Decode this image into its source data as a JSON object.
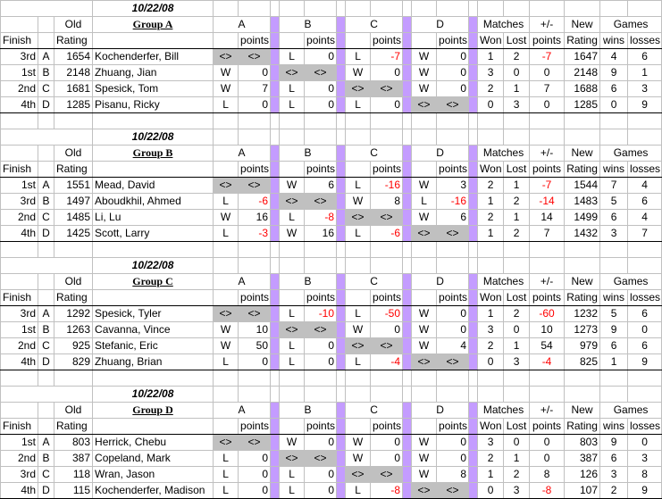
{
  "header": {
    "finish": "Finish",
    "old": "Old",
    "rating": "Rating",
    "a": "A",
    "b": "B",
    "c": "C",
    "d": "D",
    "points": "points",
    "matches": "Matches",
    "won": "Won",
    "lost": "Lost",
    "plusminus": "+/-",
    "new": "New",
    "games": "Games",
    "wins": "wins",
    "losses": "losses"
  },
  "groups": [
    {
      "date": "10/22/08",
      "name": "Group A",
      "rows": [
        {
          "finish": "3rd",
          "seed": "A",
          "old": "1654",
          "name": "Kochenderfer, Bill",
          "ar": "<>",
          "ap": "<>",
          "br": "L",
          "bp": "0",
          "cr": "L",
          "cp": "-7",
          "dr": "W",
          "dp": "0",
          "won": "1",
          "lost": "2",
          "pts": "-7",
          "new": "1647",
          "wins": "4",
          "losses": "6"
        },
        {
          "finish": "1st",
          "seed": "B",
          "old": "2148",
          "name": "Zhuang, Jian",
          "ar": "W",
          "ap": "0",
          "br": "<>",
          "bp": "<>",
          "cr": "W",
          "cp": "0",
          "dr": "W",
          "dp": "0",
          "won": "3",
          "lost": "0",
          "pts": "0",
          "new": "2148",
          "wins": "9",
          "losses": "1"
        },
        {
          "finish": "2nd",
          "seed": "C",
          "old": "1681",
          "name": "Spesick, Tom",
          "ar": "W",
          "ap": "7",
          "br": "L",
          "bp": "0",
          "cr": "<>",
          "cp": "<>",
          "dr": "W",
          "dp": "0",
          "won": "2",
          "lost": "1",
          "pts": "7",
          "new": "1688",
          "wins": "6",
          "losses": "3"
        },
        {
          "finish": "4th",
          "seed": "D",
          "old": "1285",
          "name": "Pisanu, Ricky",
          "ar": "L",
          "ap": "0",
          "br": "L",
          "bp": "0",
          "cr": "L",
          "cp": "0",
          "dr": "<>",
          "dp": "<>",
          "won": "0",
          "lost": "3",
          "pts": "0",
          "new": "1285",
          "wins": "0",
          "losses": "9"
        }
      ]
    },
    {
      "date": "10/22/08",
      "name": "Group B",
      "rows": [
        {
          "finish": "1st",
          "seed": "A",
          "old": "1551",
          "name": "Mead, David",
          "ar": "<>",
          "ap": "<>",
          "br": "W",
          "bp": "6",
          "cr": "L",
          "cp": "-16",
          "dr": "W",
          "dp": "3",
          "won": "2",
          "lost": "1",
          "pts": "-7",
          "new": "1544",
          "wins": "7",
          "losses": "4"
        },
        {
          "finish": "3rd",
          "seed": "B",
          "old": "1497",
          "name": "Aboudkhil, Ahmed",
          "ar": "L",
          "ap": "-6",
          "br": "<>",
          "bp": "<>",
          "cr": "W",
          "cp": "8",
          "dr": "L",
          "dp": "-16",
          "won": "1",
          "lost": "2",
          "pts": "-14",
          "new": "1483",
          "wins": "5",
          "losses": "6"
        },
        {
          "finish": "2nd",
          "seed": "C",
          "old": "1485",
          "name": "Li, Lu",
          "ar": "W",
          "ap": "16",
          "br": "L",
          "bp": "-8",
          "cr": "<>",
          "cp": "<>",
          "dr": "W",
          "dp": "6",
          "won": "2",
          "lost": "1",
          "pts": "14",
          "new": "1499",
          "wins": "6",
          "losses": "4"
        },
        {
          "finish": "4th",
          "seed": "D",
          "old": "1425",
          "name": "Scott, Larry",
          "ar": "L",
          "ap": "-3",
          "br": "W",
          "bp": "16",
          "cr": "L",
          "cp": "-6",
          "dr": "<>",
          "dp": "<>",
          "won": "1",
          "lost": "2",
          "pts": "7",
          "new": "1432",
          "wins": "3",
          "losses": "7"
        }
      ]
    },
    {
      "date": "10/22/08",
      "name": "Group C",
      "rows": [
        {
          "finish": "3rd",
          "seed": "A",
          "old": "1292",
          "name": "Spesick, Tyler",
          "ar": "<>",
          "ap": "<>",
          "br": "L",
          "bp": "-10",
          "cr": "L",
          "cp": "-50",
          "dr": "W",
          "dp": "0",
          "won": "1",
          "lost": "2",
          "pts": "-60",
          "new": "1232",
          "wins": "5",
          "losses": "6"
        },
        {
          "finish": "1st",
          "seed": "B",
          "old": "1263",
          "name": "Cavanna, Vince",
          "ar": "W",
          "ap": "10",
          "br": "<>",
          "bp": "<>",
          "cr": "W",
          "cp": "0",
          "dr": "W",
          "dp": "0",
          "won": "3",
          "lost": "0",
          "pts": "10",
          "new": "1273",
          "wins": "9",
          "losses": "0"
        },
        {
          "finish": "2nd",
          "seed": "C",
          "old": "925",
          "name": "Stefanic, Eric",
          "ar": "W",
          "ap": "50",
          "br": "L",
          "bp": "0",
          "cr": "<>",
          "cp": "<>",
          "dr": "W",
          "dp": "4",
          "won": "2",
          "lost": "1",
          "pts": "54",
          "new": "979",
          "wins": "6",
          "losses": "6"
        },
        {
          "finish": "4th",
          "seed": "D",
          "old": "829",
          "name": "Zhuang, Brian",
          "ar": "L",
          "ap": "0",
          "br": "L",
          "bp": "0",
          "cr": "L",
          "cp": "-4",
          "dr": "<>",
          "dp": "<>",
          "won": "0",
          "lost": "3",
          "pts": "-4",
          "new": "825",
          "wins": "1",
          "losses": "9"
        }
      ]
    },
    {
      "date": "10/22/08",
      "name": "Group D",
      "rows": [
        {
          "finish": "1st",
          "seed": "A",
          "old": "803",
          "name": "Herrick, Chebu",
          "ar": "<>",
          "ap": "<>",
          "br": "W",
          "bp": "0",
          "cr": "W",
          "cp": "0",
          "dr": "W",
          "dp": "0",
          "won": "3",
          "lost": "0",
          "pts": "0",
          "new": "803",
          "wins": "9",
          "losses": "0"
        },
        {
          "finish": "2nd",
          "seed": "B",
          "old": "387",
          "name": "Copeland, Mark",
          "ar": "L",
          "ap": "0",
          "br": "<>",
          "bp": "<>",
          "cr": "W",
          "cp": "0",
          "dr": "W",
          "dp": "0",
          "won": "2",
          "lost": "1",
          "pts": "0",
          "new": "387",
          "wins": "6",
          "losses": "3"
        },
        {
          "finish": "3rd",
          "seed": "C",
          "old": "118",
          "name": "Wran, Jason",
          "ar": "L",
          "ap": "0",
          "br": "L",
          "bp": "0",
          "cr": "<>",
          "cp": "<>",
          "dr": "W",
          "dp": "8",
          "won": "1",
          "lost": "2",
          "pts": "8",
          "new": "126",
          "wins": "3",
          "losses": "8"
        },
        {
          "finish": "4th",
          "seed": "D",
          "old": "115",
          "name": "Kochenderfer, Madison",
          "ar": "L",
          "ap": "0",
          "br": "L",
          "bp": "0",
          "cr": "L",
          "cp": "-8",
          "dr": "<>",
          "dp": "<>",
          "won": "0",
          "lost": "3",
          "pts": "-8",
          "new": "107",
          "wins": "2",
          "losses": "9"
        }
      ]
    }
  ]
}
